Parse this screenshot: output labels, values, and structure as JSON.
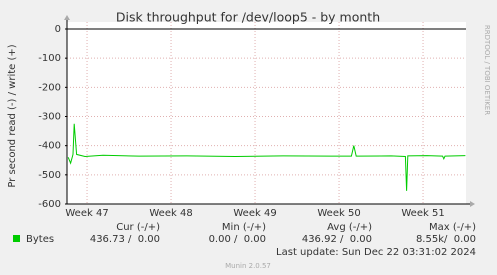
{
  "chart_data": {
    "type": "line",
    "title": "Disk throughput for /dev/loop5 - by month",
    "y_label": "Pr second read (-) / write (+)",
    "watermark": "RRDTOOL / TOBI OETIKER",
    "x": [
      0.1,
      0.3,
      0.5,
      0.6,
      0.8,
      1.5,
      3,
      6,
      10,
      14,
      18,
      22,
      23.7,
      23.9,
      24.1,
      27,
      28.2,
      28.3,
      28.4,
      30,
      31.3,
      31.4,
      31.5,
      33.2
    ],
    "series": [
      {
        "name": "Bytes",
        "color": "#00cc00",
        "values": [
          -440,
          -460,
          -430,
          -325,
          -430,
          -437,
          -433,
          -436,
          -435,
          -437,
          -435,
          -436,
          -436,
          -400,
          -436,
          -435,
          -437,
          -555,
          -435,
          -434,
          -436,
          -445,
          -436,
          -434
        ]
      }
    ],
    "xlim": [
      0,
      33.25
    ],
    "xticks": [
      {
        "value": 1.67,
        "label": "Week 47"
      },
      {
        "value": 8.67,
        "label": "Week 48"
      },
      {
        "value": 15.67,
        "label": "Week 49"
      },
      {
        "value": 22.67,
        "label": "Week 50"
      },
      {
        "value": 29.67,
        "label": "Week 51"
      }
    ],
    "ylim": [
      -600,
      0
    ],
    "yticks": [
      -600,
      -500,
      -400,
      -300,
      -200,
      -100,
      0
    ],
    "grid": true,
    "legend": {
      "headers": [
        "Cur (-/+)",
        "Min (-/+)",
        "Avg (-/+)",
        "Max (-/+)"
      ],
      "rows": [
        {
          "name": "Bytes",
          "cells": [
            "436.73 /  0.00",
            "0.00 /  0.00",
            "436.92 /  0.00",
            "8.55k/  0.00"
          ]
        }
      ]
    },
    "last_update": "Last update: Sun Dec 22 03:31:02 2024",
    "footer": "Munin 2.0.57"
  }
}
